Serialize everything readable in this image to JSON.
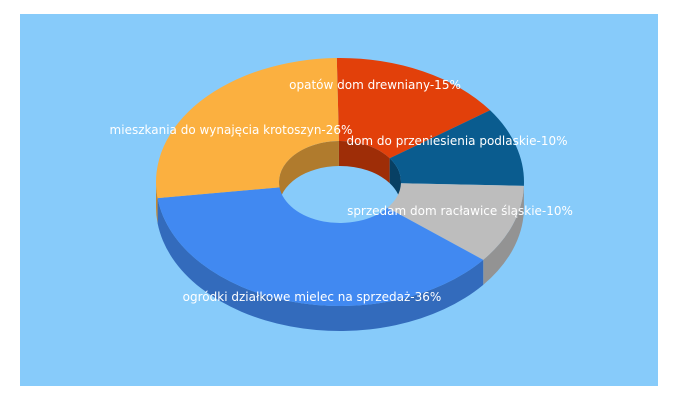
{
  "chart_data": {
    "type": "pie",
    "donut": true,
    "three_d": true,
    "title": "",
    "legend": "none",
    "slices": [
      {
        "label": "opatów dom drewniany",
        "value": 15,
        "display": "opatów dom drewniany-15%",
        "color": "#e2400a"
      },
      {
        "label": "dom do przeniesienia podlaskie",
        "value": 10,
        "display": "dom do przeniesienia podlaskie-10%",
        "color": "#0a5c8f"
      },
      {
        "label": "sprzedam dom racławice śląskie",
        "value": 10,
        "display": "sprzedam dom racławice śląskie-10%",
        "color": "#bdbdbd"
      },
      {
        "label": "ogródki działkowe mielec na sprzedaż",
        "value": 36,
        "display": "ogródki działkowe mielec na sprzedaż-36%",
        "color": "#4189f1"
      },
      {
        "label": "mieszkania do wynajęcia krotoszyn",
        "value": 26,
        "display": "mieszkania do wynajęcia krotoszyn-26%",
        "color": "#fbb040"
      }
    ]
  },
  "colors": {
    "panel_background": "#87cbfa",
    "label_text": "#ffffff"
  }
}
